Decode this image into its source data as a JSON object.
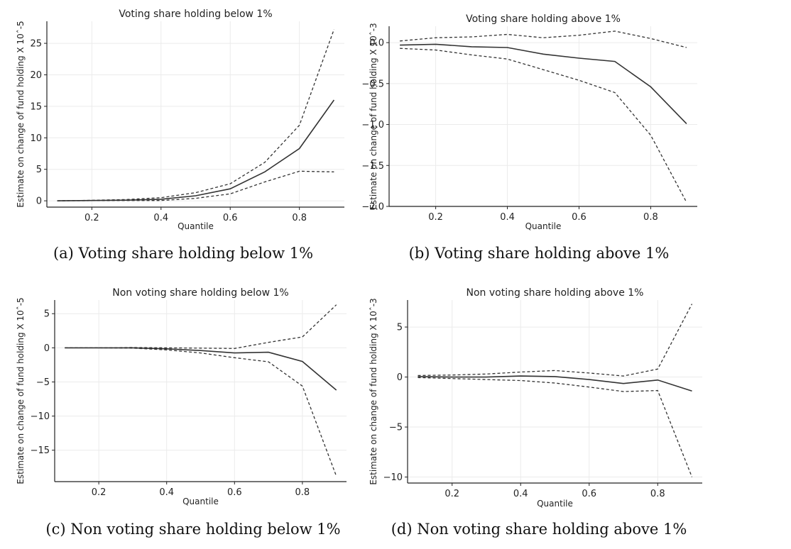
{
  "chart_data": [
    {
      "type": "line",
      "title": "Voting share holding below 1%",
      "xlabel": "Quantile",
      "ylabel": "Estimate on change of fund holding X 10^-5",
      "caption": "(a) Voting share holding below 1%",
      "x": [
        0.1,
        0.2,
        0.3,
        0.4,
        0.5,
        0.6,
        0.7,
        0.8,
        0.9
      ],
      "xlim": [
        0.07,
        0.93
      ],
      "ylim": [
        -1.0,
        28.5
      ],
      "xticks": [
        0.2,
        0.4,
        0.6,
        0.8
      ],
      "xtick_labels": [
        "0.2",
        "0.4",
        "0.6",
        "0.8"
      ],
      "yticks": [
        0,
        5,
        10,
        15,
        20,
        25
      ],
      "ytick_labels": [
        "0",
        "5",
        "10",
        "15",
        "20",
        "25"
      ],
      "grid": true,
      "series": [
        {
          "style": "solid",
          "values": [
            0.0,
            0.05,
            0.1,
            0.25,
            0.8,
            1.9,
            4.6,
            8.3,
            16.0
          ]
        },
        {
          "style": "dashed",
          "values": [
            0.0,
            0.08,
            0.2,
            0.5,
            1.3,
            2.7,
            6.1,
            12.0,
            27.2
          ]
        },
        {
          "style": "dashed",
          "values": [
            0.0,
            0.02,
            0.05,
            0.05,
            0.4,
            1.1,
            3.0,
            4.7,
            4.6
          ]
        }
      ]
    },
    {
      "type": "line",
      "title": "Voting share holding above 1%",
      "xlabel": "Quantile",
      "ylabel": "Estimate on change of fund holding X 10^-3",
      "caption": "(b) Voting share holding above 1%",
      "x": [
        0.1,
        0.2,
        0.3,
        0.4,
        0.5,
        0.6,
        0.7,
        0.8,
        0.9
      ],
      "xlim": [
        0.07,
        0.93
      ],
      "ylim": [
        -2.0,
        0.2
      ],
      "xticks": [
        0.2,
        0.4,
        0.6,
        0.8
      ],
      "xtick_labels": [
        "0.2",
        "0.4",
        "0.6",
        "0.8"
      ],
      "yticks": [
        0.0,
        -0.5,
        -1.0,
        -1.5,
        -2.0
      ],
      "ytick_labels": [
        "0.0",
        "−0.5",
        "−1.0",
        "−1.5",
        "−2.0"
      ],
      "grid": true,
      "series": [
        {
          "style": "solid",
          "values": [
            -0.03,
            -0.02,
            -0.05,
            -0.06,
            -0.14,
            -0.19,
            -0.23,
            -0.54,
            -0.99
          ]
        },
        {
          "style": "dashed",
          "values": [
            0.02,
            0.06,
            0.07,
            0.1,
            0.06,
            0.09,
            0.14,
            0.05,
            -0.06
          ]
        },
        {
          "style": "dashed",
          "values": [
            -0.07,
            -0.09,
            -0.15,
            -0.2,
            -0.33,
            -0.46,
            -0.61,
            -1.13,
            -1.95
          ]
        }
      ]
    },
    {
      "type": "line",
      "title": "Non voting share holding below 1%",
      "xlabel": "Quantile",
      "ylabel": "Estimate on change of fund holding X 10^-5",
      "caption": "(c) Non voting share holding below 1%",
      "x": [
        0.1,
        0.2,
        0.3,
        0.4,
        0.5,
        0.6,
        0.7,
        0.8,
        0.9
      ],
      "xlim": [
        0.07,
        0.93
      ],
      "ylim": [
        -19.6,
        7.0
      ],
      "xticks": [
        0.2,
        0.4,
        0.6,
        0.8
      ],
      "xtick_labels": [
        "0.2",
        "0.4",
        "0.6",
        "0.8"
      ],
      "yticks": [
        5,
        0,
        -5,
        -10,
        -15
      ],
      "ytick_labels": [
        "5",
        "0",
        "−5",
        "−10",
        "−15"
      ],
      "grid": true,
      "series": [
        {
          "style": "solid",
          "values": [
            0.0,
            0.0,
            0.0,
            -0.15,
            -0.4,
            -0.75,
            -0.65,
            -2.0,
            -6.2
          ]
        },
        {
          "style": "dashed",
          "values": [
            0.0,
            0.0,
            0.05,
            0.0,
            -0.05,
            -0.1,
            0.8,
            1.6,
            6.3
          ]
        },
        {
          "style": "dashed",
          "values": [
            0.0,
            0.0,
            -0.05,
            -0.3,
            -0.75,
            -1.45,
            -2.05,
            -5.6,
            -18.8
          ]
        }
      ]
    },
    {
      "type": "line",
      "title": "Non voting share holding above 1%",
      "xlabel": "Quantile",
      "ylabel": "Estimate on change of fund holding X 10^-3",
      "caption": "(d) Non voting share holding above 1%",
      "x": [
        0.1,
        0.2,
        0.3,
        0.4,
        0.5,
        0.6,
        0.7,
        0.8,
        0.9
      ],
      "xlim": [
        0.07,
        0.93
      ],
      "ylim": [
        -10.6,
        7.7
      ],
      "xticks": [
        0.2,
        0.4,
        0.6,
        0.8
      ],
      "xtick_labels": [
        "0.2",
        "0.4",
        "0.6",
        "0.8"
      ],
      "yticks": [
        5,
        0,
        -5,
        -10
      ],
      "ytick_labels": [
        "5",
        "0",
        "−5",
        "−10"
      ],
      "grid": true,
      "series": [
        {
          "style": "solid",
          "values": [
            0.05,
            0.0,
            0.0,
            0.1,
            0.05,
            -0.25,
            -0.65,
            -0.3,
            -1.4
          ]
        },
        {
          "style": "dashed",
          "values": [
            0.15,
            0.2,
            0.3,
            0.5,
            0.65,
            0.4,
            0.1,
            0.8,
            7.3
          ]
        },
        {
          "style": "dashed",
          "values": [
            -0.05,
            -0.15,
            -0.25,
            -0.35,
            -0.6,
            -1.0,
            -1.45,
            -1.35,
            -10.0
          ]
        }
      ]
    }
  ]
}
